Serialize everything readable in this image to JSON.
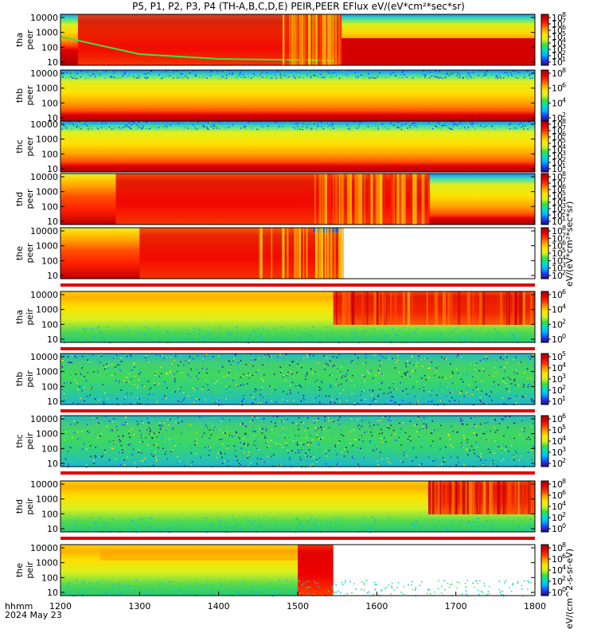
{
  "chart_data": {
    "type": "heatmap",
    "title": "P5, P1, P2, P3, P4 (TH-A,B,C,D,E) PEIR,PEER EFlux eV/(eV*cm²*sec*sr)",
    "x_axis": {
      "label_line1": "hhmm",
      "label_line2": "2024 May 23",
      "ticks": [
        "1200",
        "1300",
        "1400",
        "1500",
        "1600",
        "1700",
        "1800"
      ],
      "range": [
        1200,
        1800
      ]
    },
    "colorbar_label_top": "eV/(eV*cm²*sec*sr)",
    "colorbar_label_bottom": "eV/(cm^2-s-sr-eV)",
    "panels": [
      {
        "probe": "tha",
        "species": "peer",
        "yticks": [
          "10000",
          "1000",
          "100",
          "10"
        ],
        "cbar_ticks": [
          "8",
          "7",
          "6",
          "5",
          "4",
          "3",
          "2",
          "1"
        ],
        "data_end": 1800,
        "bg": "lowred",
        "note": "high flux below ~1555, wide low-energy red band after"
      },
      {
        "probe": "thb",
        "species": "peer",
        "yticks": [
          "10000",
          "1000",
          "100",
          "10"
        ],
        "cbar_ticks": [
          "8",
          "6",
          "4",
          "2"
        ],
        "data_end": 1800,
        "bg": "peer-steady"
      },
      {
        "probe": "thc",
        "species": "peer",
        "yticks": [
          "10000",
          "1000",
          "100",
          "10"
        ],
        "cbar_ticks": [
          "8",
          "7",
          "6",
          "5",
          "4",
          "3",
          "2",
          "1"
        ],
        "data_end": 1800,
        "bg": "peer-steady"
      },
      {
        "probe": "thd",
        "species": "peer",
        "yticks": [
          "10000",
          "1000",
          "100",
          "10"
        ],
        "cbar_ticks": [
          "8",
          "7",
          "6",
          "5",
          "4",
          "3",
          "2",
          "1"
        ],
        "data_end": 1800,
        "bg": "peer-wide",
        "note": "broadband red until ~1665"
      },
      {
        "probe": "the",
        "species": "peer",
        "yticks": [
          "10000",
          "1000",
          "100",
          "10"
        ],
        "cbar_ticks": [
          "8",
          "7",
          "6",
          "5",
          "4",
          "3",
          "2"
        ],
        "data_end": 1555,
        "bg": "peer-wide"
      },
      {
        "probe": "tha",
        "species": "peir",
        "yticks": [
          "10000",
          "1000",
          "100",
          "10"
        ],
        "cbar_ticks": [
          "6",
          "4",
          "2",
          "0"
        ],
        "data_end": 1800,
        "bg": "peir",
        "note": "red above 100 eV after ~1545"
      },
      {
        "probe": "thb",
        "species": "peir",
        "yticks": [
          "10000",
          "1000",
          "100",
          "10"
        ],
        "cbar_ticks": [
          "5",
          "4",
          "3",
          "2",
          "1"
        ],
        "data_end": 1800,
        "bg": "peir-noise"
      },
      {
        "probe": "thc",
        "species": "peir",
        "yticks": [
          "10000",
          "1000",
          "100",
          "10"
        ],
        "cbar_ticks": [
          "6",
          "5",
          "4",
          "3",
          "2"
        ],
        "data_end": 1800,
        "bg": "peir-noise"
      },
      {
        "probe": "thd",
        "species": "peir",
        "yticks": [
          "10000",
          "1000",
          "100",
          "10"
        ],
        "cbar_ticks": [
          "8",
          "6",
          "4",
          "2",
          "0"
        ],
        "data_end": 1800,
        "bg": "peir",
        "note": "red band above 100 eV after ~1665"
      },
      {
        "probe": "the",
        "species": "peir",
        "yticks": [
          "10000",
          "1000",
          "100",
          "10"
        ],
        "cbar_ticks": [
          "8",
          "6",
          "4",
          "2",
          "0"
        ],
        "data_end": 1545,
        "bg": "peir"
      }
    ],
    "colormap": [
      "#2d0a6a",
      "#1e3cff",
      "#00b4ff",
      "#00e0c8",
      "#38e038",
      "#d8f020",
      "#ffe600",
      "#ffa000",
      "#ff3a00",
      "#e60000",
      "#a00000"
    ]
  }
}
